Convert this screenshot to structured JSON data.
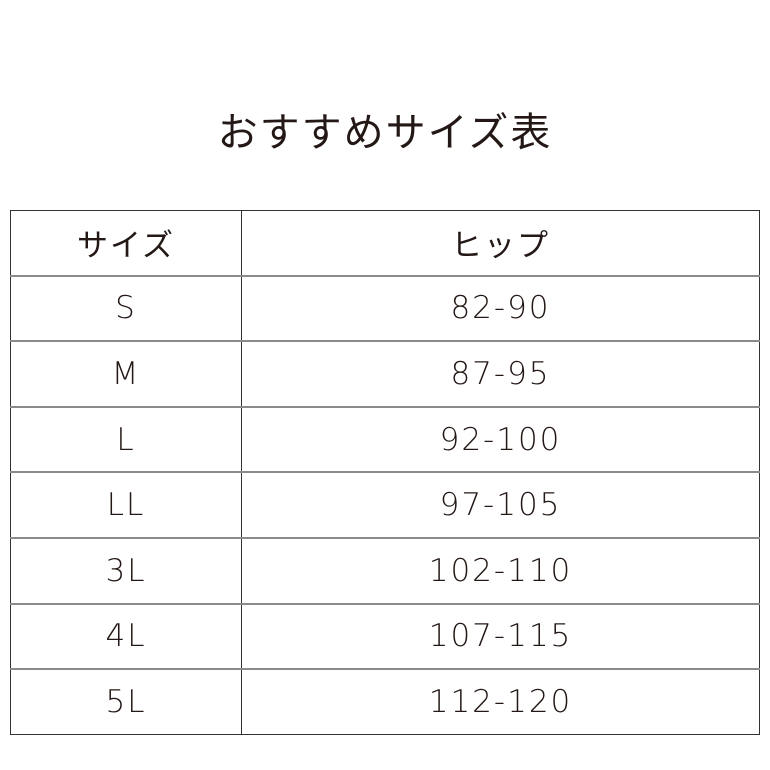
{
  "title": "おすすめサイズ表",
  "table": {
    "headers": [
      "サイズ",
      "ヒップ"
    ],
    "rows": [
      [
        "S",
        "82-90"
      ],
      [
        "M",
        "87-95"
      ],
      [
        "L",
        "92-100"
      ],
      [
        "LL",
        "97-105"
      ],
      [
        "3L",
        "102-110"
      ],
      [
        "4L",
        "107-115"
      ],
      [
        "5L",
        "112-120"
      ]
    ]
  }
}
